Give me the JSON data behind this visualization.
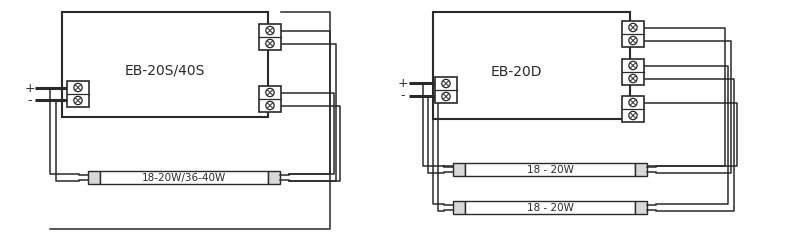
{
  "bg_color": "#ffffff",
  "line_color": "#2a2a2a",
  "d1_label": "EB-20S/40S",
  "d1_lamp_label": "18-20W/36-40W",
  "d2_label": "EB-20D",
  "d2_lamp1_label": "18 - 20W",
  "d2_lamp2_label": "18 - 20W",
  "plus": "+",
  "minus": "-"
}
